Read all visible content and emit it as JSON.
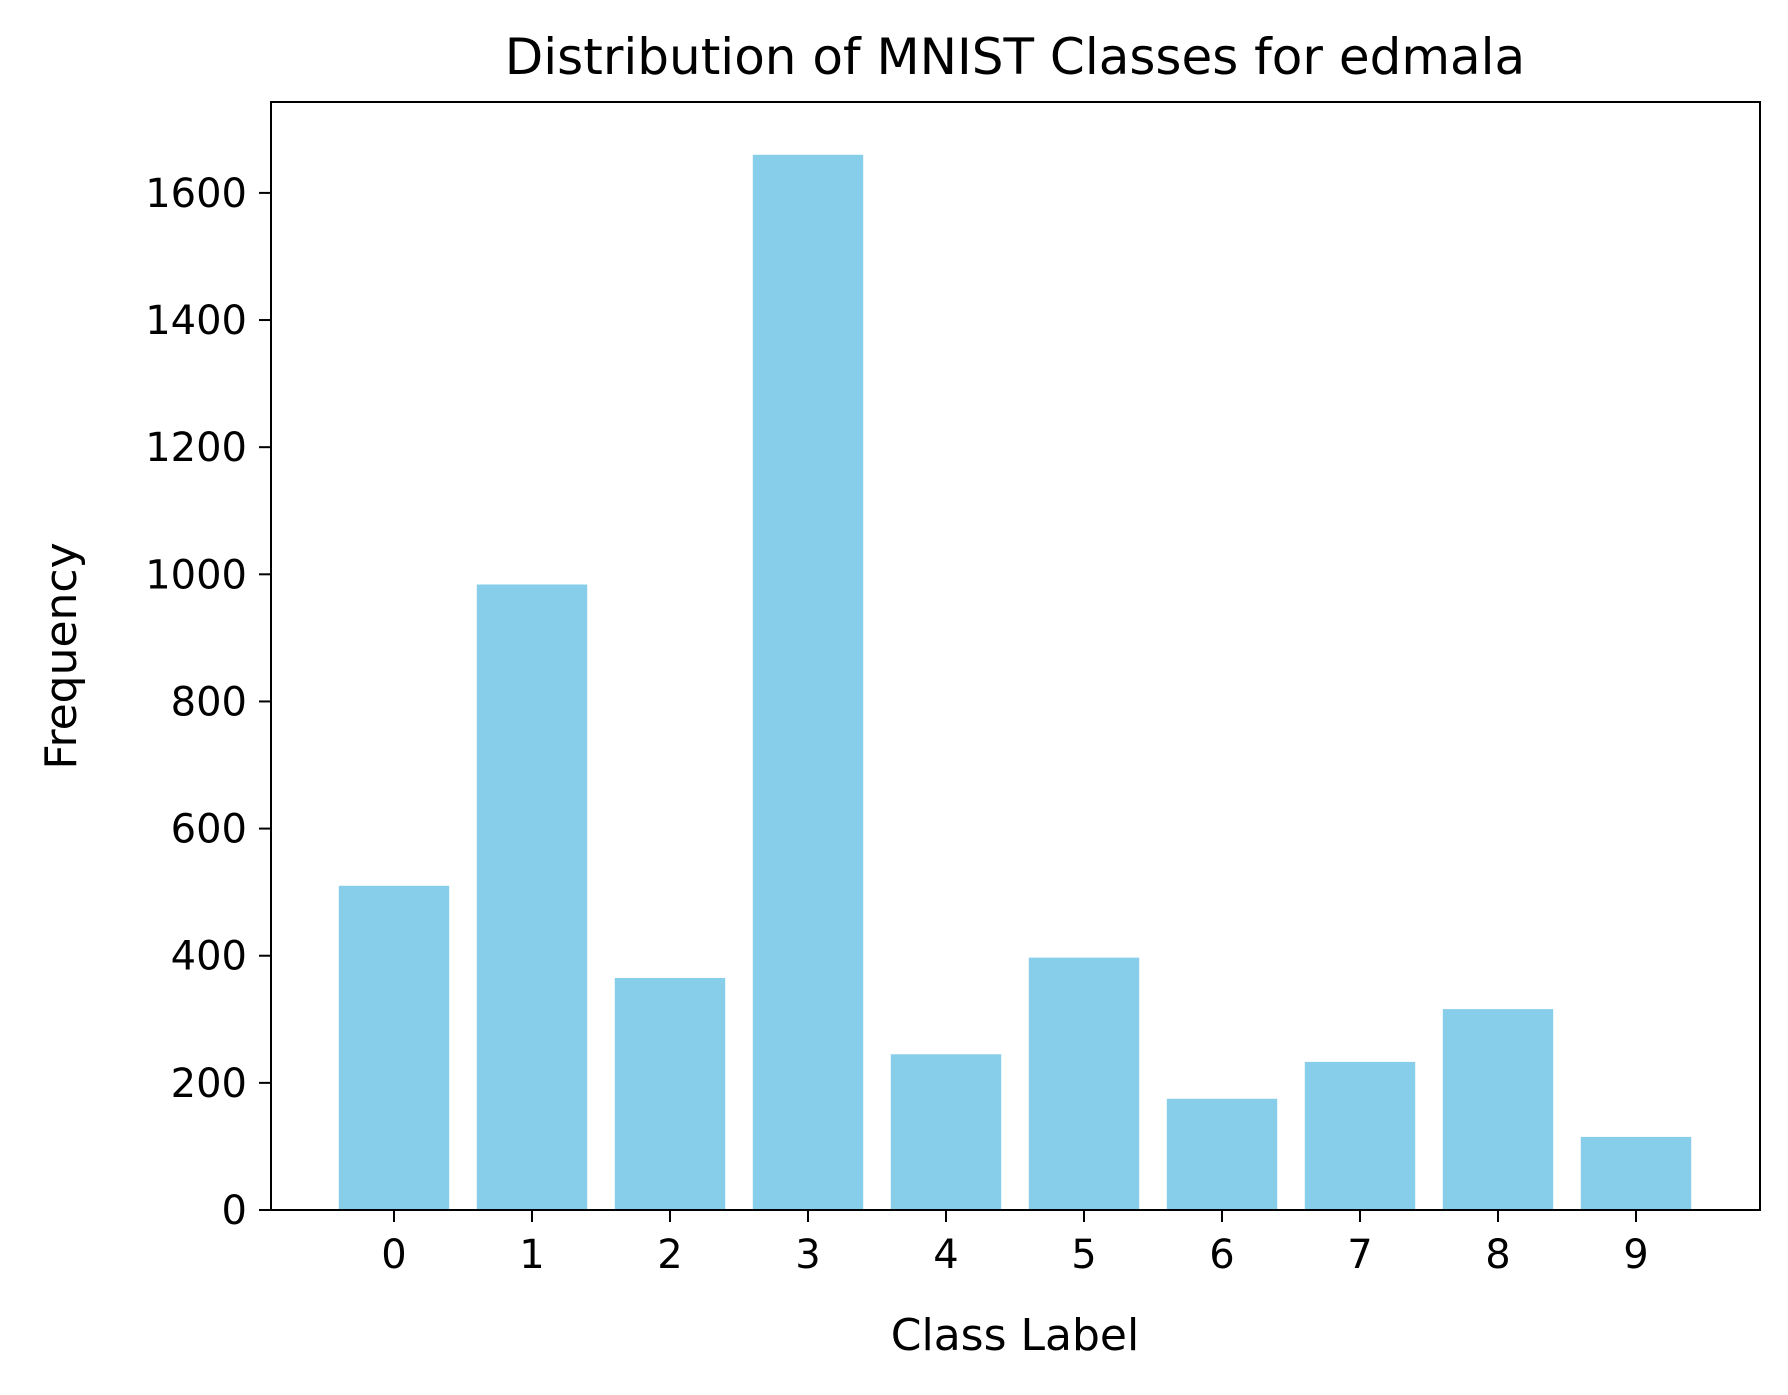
{
  "chart_data": {
    "type": "bar",
    "title": "Distribution of MNIST Classes for edmala",
    "xlabel": "Class Label",
    "ylabel": "Frequency",
    "categories": [
      "0",
      "1",
      "2",
      "3",
      "4",
      "5",
      "6",
      "7",
      "8",
      "9"
    ],
    "values": [
      510,
      984,
      365,
      1660,
      245,
      397,
      175,
      233,
      316,
      115
    ],
    "ylim": [
      0,
      1743
    ],
    "yticks": [
      0,
      200,
      400,
      600,
      800,
      1000,
      1200,
      1400,
      1600
    ],
    "ytick_labels": [
      "0",
      "200",
      "400",
      "600",
      "800",
      "1000",
      "1200",
      "1400",
      "1600"
    ],
    "bar_color": "#87CEEB",
    "grid": false,
    "legend": "none"
  }
}
